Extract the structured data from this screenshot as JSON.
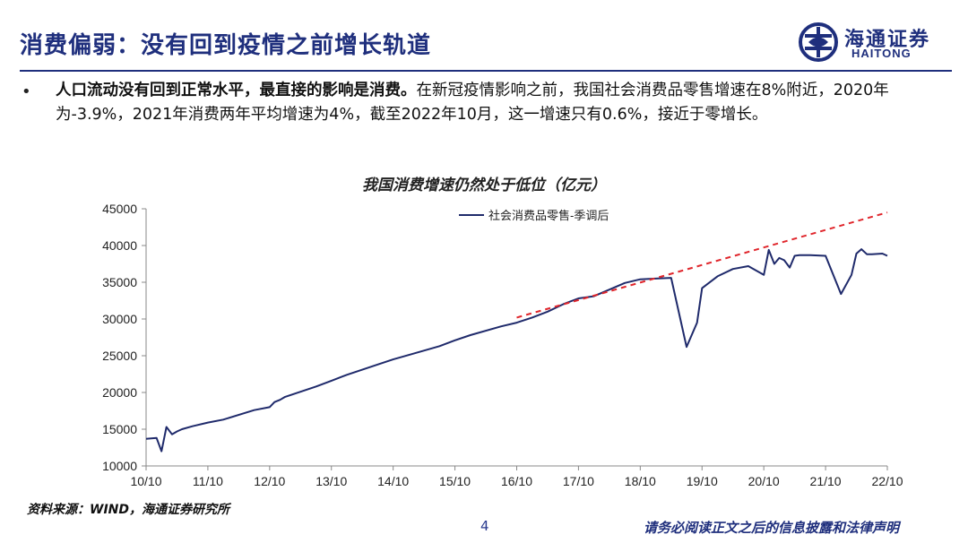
{
  "header": {
    "title": "消费偏弱：没有回到疫情之前增长轨道",
    "logo_cn": "海通证券",
    "logo_en": "HAITONG"
  },
  "bullet": {
    "marker": "•",
    "lead": "人口流动没有回到正常水平，最直接的影响是消费。",
    "body": "在新冠疫情影响之前，我国社会消费品零售增速在8%附近，2020年为-3.9%，2021年消费两年平均增速为4%，截至2022年10月，这一增速只有0.6%，接近于零增长。"
  },
  "footer": {
    "source": "资料来源：WIND，海通证券研究所",
    "page": "4",
    "disclaimer": "请务必阅读正文之后的信息披露和法律声明"
  },
  "colors": {
    "brand": "#1f2f7d",
    "series": "#1f2a6b",
    "trend": "#e0262c"
  },
  "chart_data": {
    "type": "line",
    "title": "我国消费增速仍然处于低位（亿元）",
    "xlabel": "",
    "ylabel": "",
    "ylim": [
      10000,
      45000
    ],
    "yticks": [
      10000,
      15000,
      20000,
      25000,
      30000,
      35000,
      40000,
      45000
    ],
    "xticks": [
      "10/10",
      "11/10",
      "12/10",
      "13/10",
      "14/10",
      "15/10",
      "16/10",
      "17/10",
      "18/10",
      "19/10",
      "20/10",
      "21/10",
      "22/10"
    ],
    "xrange": [
      2010.75,
      2022.75
    ],
    "grid": false,
    "legend_position": "top-center",
    "series": [
      {
        "name": "社会消费品零售-季调后",
        "style": "solid",
        "x": [
          2010.75,
          2010.92,
          2011.0,
          2011.08,
          2011.17,
          2011.25,
          2011.33,
          2011.5,
          2011.75,
          2012.0,
          2012.5,
          2012.75,
          2012.83,
          2012.92,
          2013.0,
          2013.5,
          2013.75,
          2014.0,
          2014.5,
          2014.75,
          2015.0,
          2015.5,
          2015.75,
          2016.0,
          2016.5,
          2016.75,
          2017.0,
          2017.25,
          2017.5,
          2017.75,
          2018.0,
          2018.25,
          2018.5,
          2018.75,
          2019.0,
          2019.25,
          2019.5,
          2019.67,
          2019.75,
          2020.0,
          2020.25,
          2020.5,
          2020.75,
          2020.83,
          2020.92,
          2021.0,
          2021.08,
          2021.17,
          2021.25,
          2021.33,
          2021.5,
          2021.75,
          2022.0,
          2022.17,
          2022.25,
          2022.33,
          2022.42,
          2022.5,
          2022.67,
          2022.75
        ],
        "values": [
          13700,
          13800,
          12000,
          15300,
          14300,
          14700,
          15000,
          15400,
          15900,
          16300,
          17600,
          18000,
          18700,
          19000,
          19400,
          20800,
          21600,
          22400,
          23800,
          24500,
          25100,
          26300,
          27100,
          27800,
          29000,
          29500,
          30200,
          31000,
          32000,
          32800,
          33100,
          34000,
          34900,
          35400,
          35500,
          35600,
          26200,
          29500,
          34200,
          35800,
          36800,
          37200,
          36000,
          39400,
          37500,
          38300,
          38000,
          37000,
          38600,
          38700,
          38700,
          38600,
          33400,
          36000,
          38900,
          39500,
          38800,
          38800,
          38900,
          38600
        ]
      },
      {
        "name": "",
        "style": "dashed",
        "x": [
          2016.75,
          2022.75
        ],
        "values": [
          30200,
          44500
        ]
      }
    ]
  }
}
